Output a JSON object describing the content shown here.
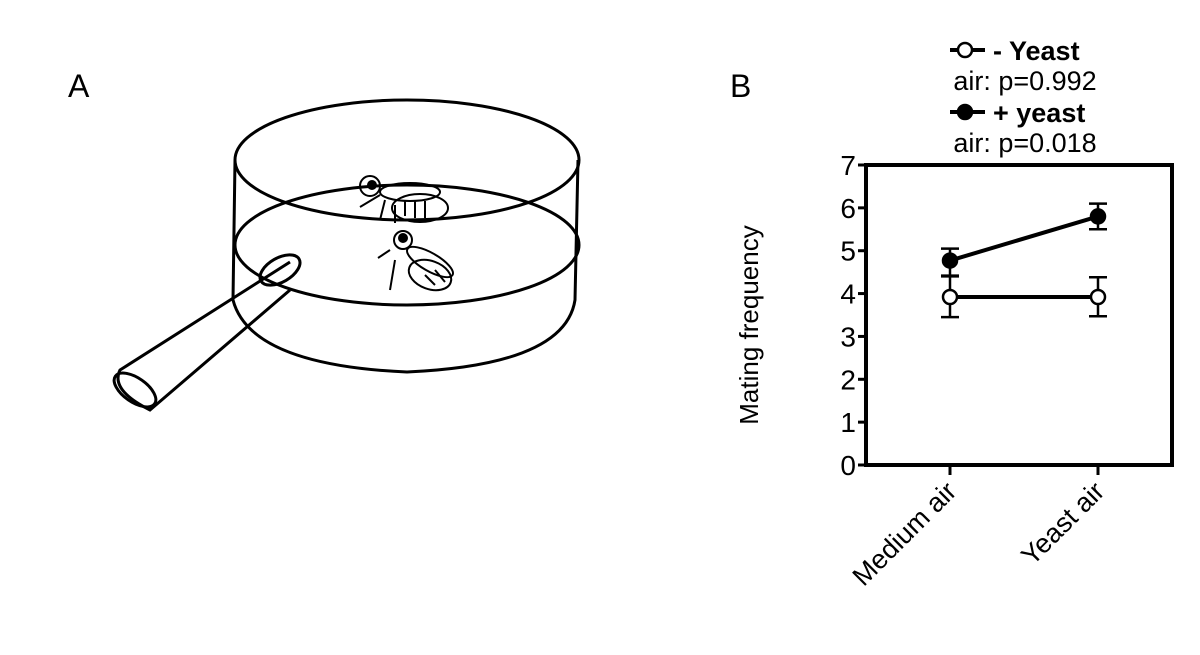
{
  "panels": {
    "a_label": "A",
    "b_label": "B"
  },
  "legend": {
    "items": [
      {
        "marker": "open-circle",
        "label": "- Yeast",
        "stat": "air: p=0.992"
      },
      {
        "marker": "filled-circle",
        "label": "+ yeast",
        "stat": "air: p=0.018"
      }
    ]
  },
  "chart_data": {
    "type": "line",
    "title": "",
    "xlabel": "",
    "ylabel": "Mating frequency",
    "categories": [
      "Medium air",
      "Yeast air"
    ],
    "ylim": [
      0,
      7
    ],
    "yticks": [
      "0",
      "1",
      "2",
      "3",
      "4",
      "5",
      "6",
      "7"
    ],
    "grid": false,
    "legend_placement": "top",
    "series": [
      {
        "name": "- Yeast",
        "marker": "open",
        "values": [
          3.92,
          3.92
        ],
        "err_low": [
          3.45,
          3.47
        ],
        "err_high": [
          4.4,
          4.38
        ]
      },
      {
        "name": "+ yeast",
        "marker": "filled",
        "values": [
          4.77,
          5.8
        ],
        "err_low": [
          4.42,
          5.5
        ],
        "err_high": [
          5.05,
          6.1
        ]
      }
    ]
  }
}
